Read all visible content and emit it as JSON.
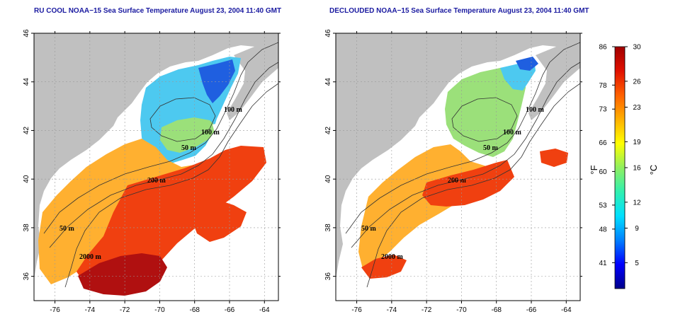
{
  "maps": [
    {
      "id": "left",
      "title": "RU COOL NOAA−15 Sea Surface Temperature August 23, 2004 11:40 GMT",
      "contour_labels": [
        "100 m",
        "100 m",
        "50 m",
        "200 m",
        "50 m",
        "2000 m"
      ]
    },
    {
      "id": "right",
      "title": "DECLOUDED NOAA−15 Sea Surface Temperature August 23, 2004 11:40 GMT",
      "contour_labels": [
        "100 m",
        "100 m",
        "50 m",
        "200 m",
        "50 m",
        "2000 m"
      ]
    }
  ],
  "axes": {
    "lon_ticks": [
      "-76",
      "-74",
      "-72",
      "-70",
      "-68",
      "-66",
      "-64"
    ],
    "lat_ticks": [
      "46",
      "44",
      "42",
      "40",
      "38",
      "36"
    ],
    "lon_range": [
      -77.2,
      -63.2
    ],
    "lat_range": [
      35,
      46
    ]
  },
  "colorbar": {
    "celsius_ticks": [
      "30",
      "26",
      "23",
      "19",
      "16",
      "12",
      "9",
      "5"
    ],
    "fahrenheit_ticks": [
      "86",
      "78",
      "73",
      "66",
      "60",
      "53",
      "48",
      "41"
    ],
    "celsius_unit": "°C",
    "fahrenheit_unit": "°F",
    "range_c": [
      2,
      30
    ],
    "colors": [
      "#00008a",
      "#0000ff",
      "#0080ff",
      "#00e0ff",
      "#30f0b0",
      "#90f060",
      "#ffff00",
      "#ffb000",
      "#ff6000",
      "#e01000",
      "#a00000"
    ]
  },
  "colors": {
    "land": "#c0c0c0",
    "title": "#1a1aa0",
    "cold": "#1f5fe0",
    "cool": "#4dc9f0",
    "mild": "#9be07a",
    "warm": "#ffb030",
    "hot": "#f04010",
    "very_hot": "#b01010"
  }
}
